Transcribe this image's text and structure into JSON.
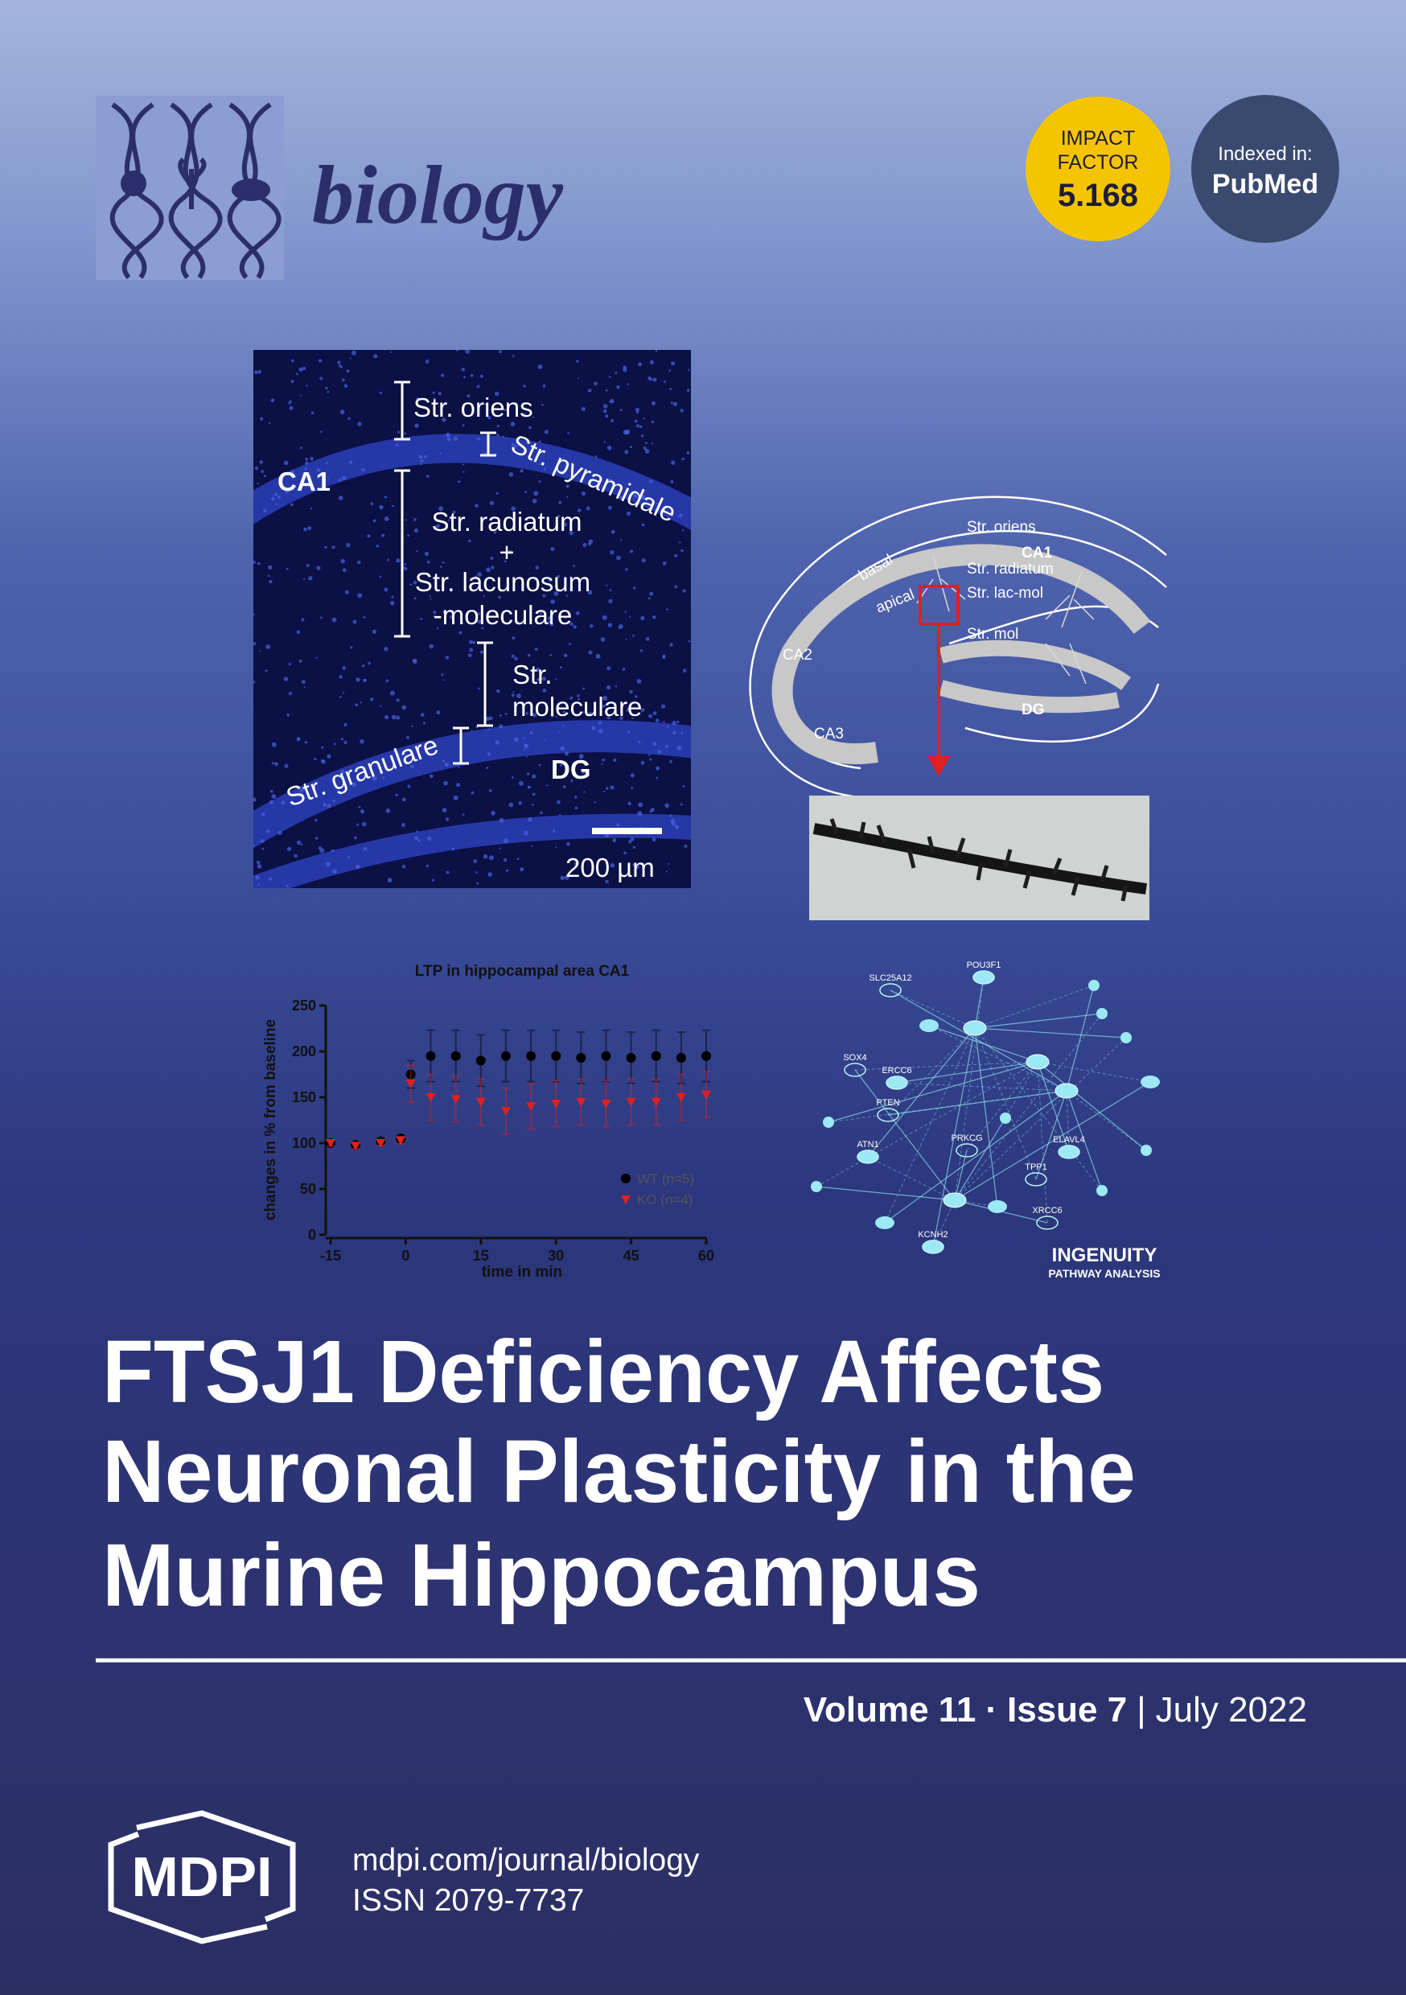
{
  "header": {
    "journal": "biology",
    "impact_factor": {
      "line1": "IMPACT",
      "line2": "FACTOR",
      "value": "5.168"
    },
    "indexed": {
      "label": "Indexed in:",
      "database": "PubMed"
    }
  },
  "micrograph": {
    "labels": [
      "Str. oriens",
      "CA1",
      "Str. pyramidale",
      "Str. radiatum",
      "+",
      "Str. lacunosum",
      "-moleculare",
      "Str.",
      "moleculare",
      "Str. granulare",
      "DG"
    ],
    "scale_bar": "200 µm"
  },
  "diagram": {
    "labels": [
      "Str. oriens",
      "CA1",
      "basal",
      "Str. radiatum",
      "apical",
      "Str. lac-mol",
      "Str. mol",
      "CA2",
      "CA3",
      "DG"
    ]
  },
  "chart_data": {
    "type": "line",
    "title": "LTP in hippocampal area CA1",
    "x_label": "time in min",
    "y_label": "changes in % from baseline",
    "x": [
      -15,
      -10,
      -5,
      -1,
      1,
      5,
      10,
      15,
      20,
      25,
      30,
      35,
      40,
      45,
      50,
      55,
      60
    ],
    "series": [
      {
        "name": "WT (n=5)",
        "color": "#000000",
        "marker": "circle",
        "values": [
          100,
          98,
          102,
          105,
          175,
          195,
          195,
          190,
          195,
          195,
          195,
          193,
          195,
          193,
          195,
          193,
          195
        ],
        "errors": [
          3,
          3,
          3,
          4,
          15,
          28,
          28,
          28,
          28,
          28,
          28,
          28,
          28,
          28,
          28,
          28,
          28
        ]
      },
      {
        "name": "KO (n=4)",
        "color": "#e02020",
        "marker": "triangle",
        "values": [
          100,
          97,
          100,
          103,
          165,
          150,
          148,
          145,
          135,
          140,
          143,
          145,
          143,
          145,
          145,
          150,
          153
        ],
        "errors": [
          3,
          3,
          3,
          4,
          20,
          25,
          25,
          25,
          25,
          25,
          25,
          25,
          25,
          25,
          25,
          25,
          25
        ]
      }
    ],
    "xlim": [
      -15,
      60
    ],
    "xticks": [
      -15,
      0,
      15,
      30,
      45,
      60
    ],
    "ylim": [
      0,
      250
    ],
    "yticks": [
      0,
      50,
      100,
      150,
      200,
      250
    ],
    "legend": "lower right"
  },
  "network": {
    "nodes": [
      "SLC25A12",
      "POU3F1",
      "SOX4",
      "ERCC6",
      "PTEN",
      "ATN1",
      "PRKCG",
      "ELAVL4",
      "TPP1",
      "KCNH2",
      "XRCC6"
    ],
    "brand": "INGENUITY",
    "brand_sub": "PATHWAY ANALYSIS"
  },
  "article": {
    "title_lines": [
      "FTSJ1 Deficiency Affects",
      "Neuronal Plasticity in the",
      "Murine Hippocampus"
    ]
  },
  "issue": {
    "volume": "Volume 11",
    "separator_dot": "·",
    "issue": "Issue 7",
    "separator_bar": "|",
    "date": "July 2022"
  },
  "footer": {
    "publisher": "MDPI",
    "url": "mdpi.com/journal/biology",
    "issn": "ISSN 2079-7737"
  }
}
